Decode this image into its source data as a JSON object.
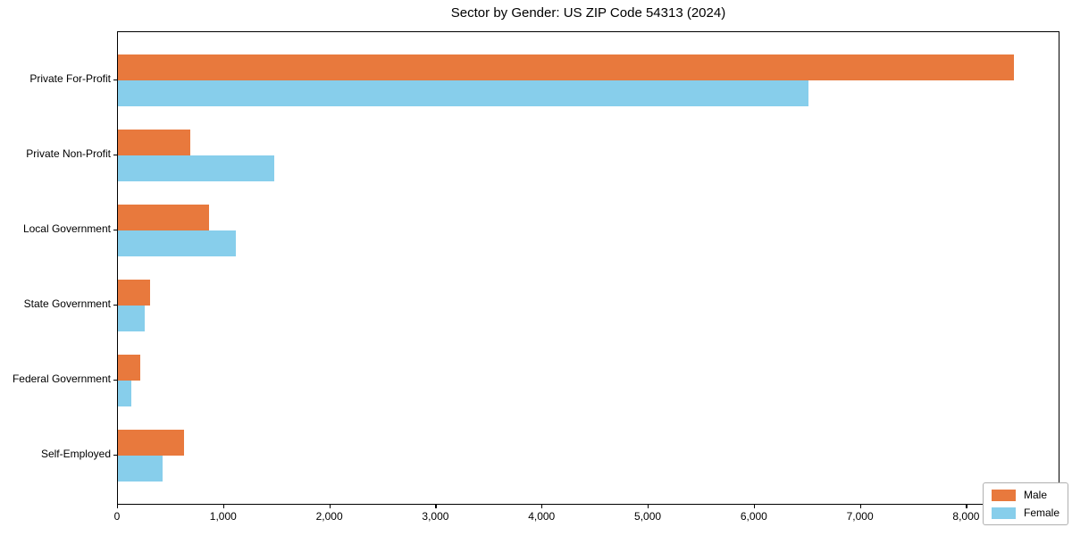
{
  "chart_data": {
    "type": "bar",
    "orientation": "horizontal",
    "title": "Sector by Gender: US ZIP Code 54313 (2024)",
    "categories": [
      "Private For-Profit",
      "Private Non-Profit",
      "Local Government",
      "State Government",
      "Federal Government",
      "Self-Employed"
    ],
    "series": [
      {
        "name": "Male",
        "color": "#e8793d",
        "values": [
          8440,
          680,
          860,
          305,
          210,
          625
        ]
      },
      {
        "name": "Female",
        "color": "#87ceeb",
        "values": [
          6510,
          1470,
          1110,
          250,
          125,
          420
        ]
      }
    ],
    "xlabel": "",
    "ylabel": "",
    "xlim": [
      0,
      8880
    ],
    "xticks": [
      0,
      1000,
      2000,
      3000,
      4000,
      5000,
      6000,
      7000,
      8000
    ],
    "xtick_labels": [
      "0",
      "1,000",
      "2,000",
      "3,000",
      "4,000",
      "5,000",
      "6,000",
      "7,000",
      "8,000"
    ],
    "grid": false,
    "legend_position": "lower right",
    "colors": {
      "axis": "#000000",
      "legend_border": "#b0b0b0",
      "background": "#ffffff"
    }
  }
}
